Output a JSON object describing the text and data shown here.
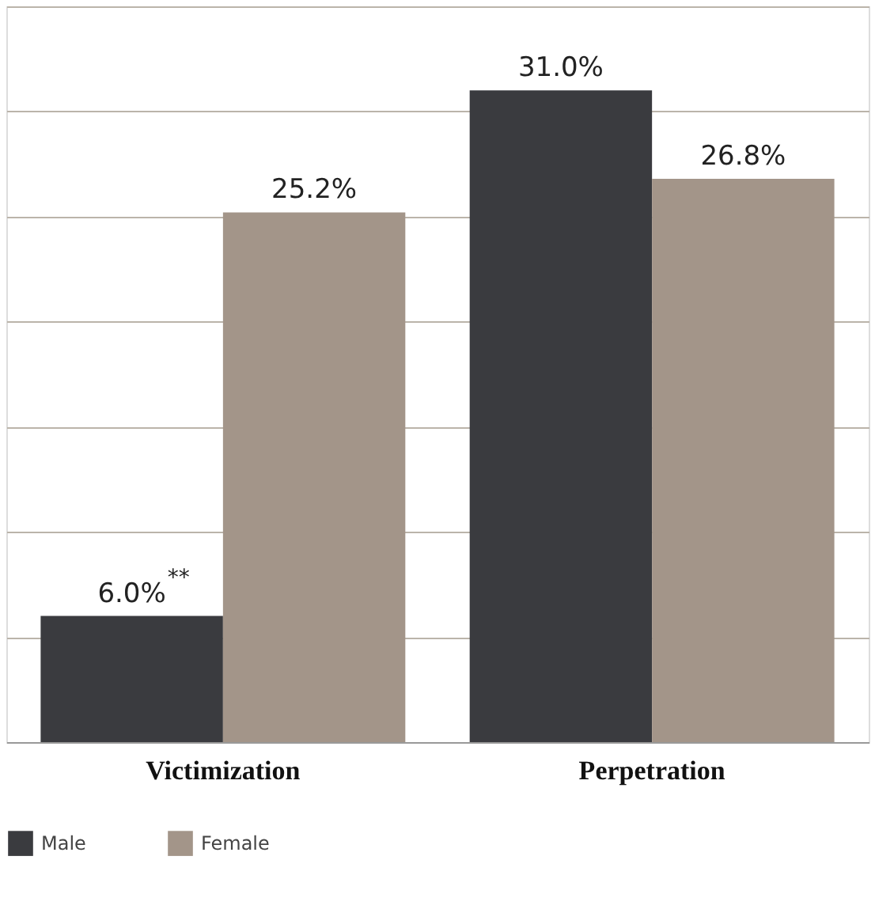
{
  "chart_data": {
    "type": "bar",
    "categories": [
      "Victimization",
      "Perpetration"
    ],
    "series": [
      {
        "name": "Male",
        "color": "#3a3b3f",
        "values": [
          6.0,
          31.0
        ],
        "value_labels": [
          "6.0%",
          "31.0%"
        ]
      },
      {
        "name": "Female",
        "color": "#a39589",
        "values": [
          25.2,
          26.8
        ],
        "value_labels": [
          "25.2%",
          "26.8%"
        ]
      }
    ],
    "grid": "y",
    "tick_labels": "x",
    "legend": "bottom left",
    "annotations": [
      {
        "text": "**",
        "x": "Victimization",
        "y": 6.0
      }
    ]
  }
}
